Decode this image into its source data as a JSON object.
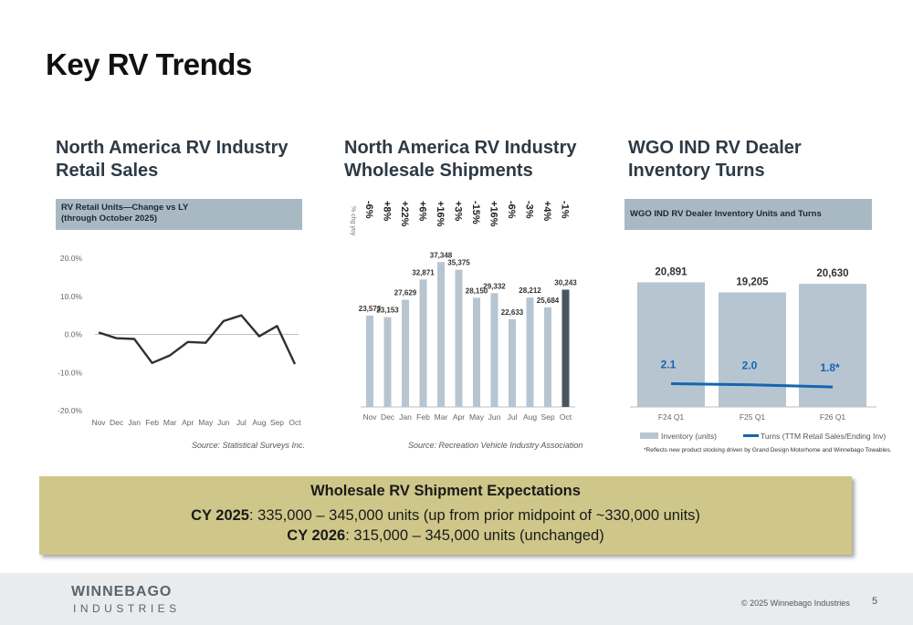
{
  "page": {
    "title": "Key RV Trends",
    "copyright": "© 2025 Winnebago Industries",
    "page_number": "5",
    "logo_top": "WINNEBAGO",
    "logo_bottom": "INDUSTRIES"
  },
  "panels": {
    "retail": {
      "title_line1": "North America RV Industry",
      "title_line2": "Retail Sales",
      "banner_line1": "RV Retail Units—Change vs LY",
      "banner_line2": "(through October 2025)",
      "source": "Source:  Statistical Surveys Inc."
    },
    "wholesale": {
      "title_line1": "North America RV Industry",
      "title_line2": "Wholesale Shipments",
      "yoy_label": "% chg yoy",
      "source": "Source:  Recreation Vehicle Industry Association"
    },
    "turns": {
      "title_line1": "WGO IND RV Dealer",
      "title_line2": "Inventory Turns",
      "banner": "WGO IND RV Dealer Inventory Units and Turns",
      "footnote": "*Reflects new product stocking driven by Grand Design Motorhome and Winnebago Towables."
    }
  },
  "expectations": {
    "title": "Wholesale RV Shipment Expectations",
    "line1_bold": "CY 2025",
    "line1_text": ": 335,000 – 345,000 units (up from prior midpoint of ~330,000 units)",
    "line2_bold": "CY 2026",
    "line2_text": ": 315,000 – 345,000 units (unchanged)"
  },
  "chart_data": [
    {
      "type": "line",
      "categories": [
        "Nov",
        "Dec",
        "Jan",
        "Feb",
        "Mar",
        "Apr",
        "May",
        "Jun",
        "Jul",
        "Aug",
        "Sep",
        "Oct"
      ],
      "series": [
        {
          "values": [
            0.5,
            -1.0,
            -1.2,
            -7.5,
            -5.5,
            -2.0,
            -2.2,
            3.5,
            5.0,
            -0.5,
            2.2,
            -7.8
          ]
        }
      ],
      "ylim": [
        -20,
        20
      ],
      "yticks": [
        "20.0%",
        "10.0%",
        "0.0%",
        "-10.0%",
        "-20.0%"
      ],
      "yticks_values": [
        20,
        10,
        0,
        -10,
        -20
      ],
      "colors": {
        "line": "#2d3238",
        "axis": "#bfbfbf"
      }
    },
    {
      "type": "bar",
      "categories": [
        "Nov",
        "Dec",
        "Jan",
        "Feb",
        "Mar",
        "Apr",
        "May",
        "Jun",
        "Jul",
        "Aug",
        "Sep",
        "Oct"
      ],
      "values": [
        23573,
        23153,
        27629,
        32871,
        37348,
        35375,
        28150,
        29332,
        22633,
        28212,
        25684,
        30243
      ],
      "value_labels": [
        "23,573",
        "23,153",
        "27,629",
        "32,871",
        "37,348",
        "35,375",
        "28,150",
        "29,332",
        "22,633",
        "28,212",
        "25,684",
        "30,243"
      ],
      "pct_change": [
        "-6%",
        "+8%",
        "+22%",
        "+6%",
        "+16%",
        "+3%",
        "-15%",
        "+16%",
        "-6%",
        "-3%",
        "+4%",
        "-1%"
      ],
      "ylim": [
        0,
        40000
      ],
      "colors": {
        "bar": "#b7c5d1",
        "highlight": "#4a5560",
        "axis": "#bfbfbf"
      }
    },
    {
      "type": "bar",
      "categories": [
        "F24 Q1",
        "F25 Q1",
        "F26 Q1"
      ],
      "series": [
        {
          "name": "Inventory (units)",
          "values": [
            20891,
            19205,
            20630
          ],
          "labels": [
            "20,891",
            "19,205",
            "20,630"
          ]
        },
        {
          "name": "Turns (TTM Retail Sales/Ending Inv)",
          "values": [
            2.1,
            2.0,
            1.8
          ],
          "labels": [
            "2.1",
            "2.0",
            "1.8*"
          ]
        }
      ],
      "ylim": [
        0,
        26000
      ],
      "turns_ylim": [
        0,
        14
      ],
      "colors": {
        "bar": "#b7c5d1",
        "line": "#1565b0",
        "axis": "#bfbfbf"
      }
    }
  ]
}
